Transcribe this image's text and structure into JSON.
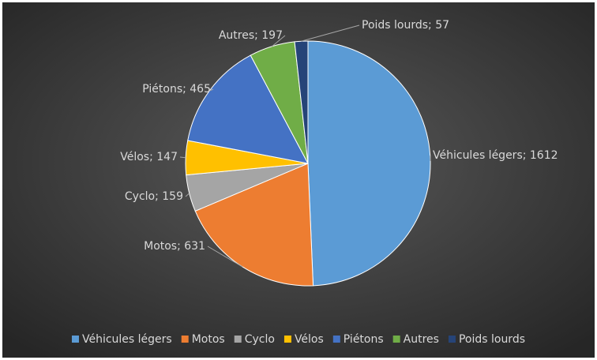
{
  "chart_data": {
    "type": "pie",
    "categories": [
      "Véhicules légers",
      "Motos",
      "Cyclo",
      "Vélos",
      "Piétons",
      "Autres",
      "Poids lourds"
    ],
    "values": [
      1612,
      631,
      159,
      147,
      465,
      197,
      57
    ],
    "value_labels": [
      "Véhicules légers; 1612",
      "Motos; 631",
      "Cyclo; 159",
      "Vélos; 147",
      "Piétons; 465",
      "Autres; 197",
      "Poids lourds; 57"
    ],
    "colors": [
      "#5b9bd5",
      "#ed7d31",
      "#a5a5a5",
      "#ffc000",
      "#4472c4",
      "#70ad47",
      "#264478"
    ],
    "legend": "bottom"
  }
}
